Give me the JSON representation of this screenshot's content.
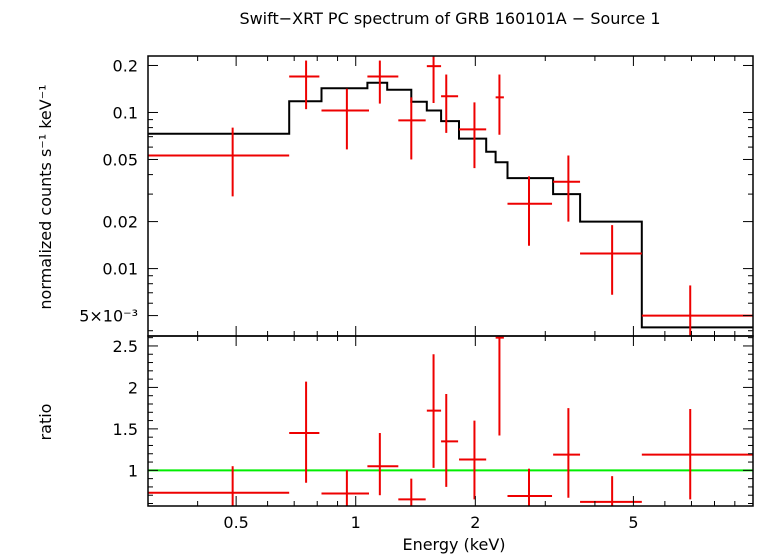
{
  "chart_data": {
    "type": "scatter",
    "title": "Swift−XRT PC spectrum of GRB 160101A − Source 1",
    "xlabel": "Energy (keV)",
    "xscale": "log",
    "xlim": [
      0.3,
      10.0
    ],
    "x_ticks": [
      {
        "value": 0.5,
        "label": "0.5"
      },
      {
        "value": 1,
        "label": "1"
      },
      {
        "value": 2,
        "label": "2"
      },
      {
        "value": 5,
        "label": "5"
      }
    ],
    "colors": {
      "data": "#ee0000",
      "model": "#000000",
      "unity": "#00ee00",
      "axes": "#000000"
    },
    "panels": [
      {
        "name": "spectrum",
        "ylabel": "normalized counts s⁻¹ keV⁻¹",
        "yscale": "log",
        "ylim": [
          0.0037,
          0.23
        ],
        "y_ticks": [
          {
            "value": 0.2,
            "label": "0.2"
          },
          {
            "value": 0.1,
            "label": "0.1"
          },
          {
            "value": 0.05,
            "label": "0.05"
          },
          {
            "value": 0.02,
            "label": "0.02"
          },
          {
            "value": 0.01,
            "label": "0.01"
          },
          {
            "value": 0.005,
            "label": "5×10⁻³"
          }
        ],
        "data": [
          {
            "x": 0.49,
            "xlo": 0.3,
            "xhi": 0.68,
            "y": 0.053,
            "ylo": 0.029,
            "yhi": 0.08
          },
          {
            "x": 0.75,
            "xlo": 0.68,
            "xhi": 0.81,
            "y": 0.17,
            "ylo": 0.105,
            "yhi": 0.215
          },
          {
            "x": 0.95,
            "xlo": 0.82,
            "xhi": 1.08,
            "y": 0.103,
            "ylo": 0.058,
            "yhi": 0.142
          },
          {
            "x": 1.15,
            "xlo": 1.07,
            "xhi": 1.28,
            "y": 0.17,
            "ylo": 0.114,
            "yhi": 0.215
          },
          {
            "x": 1.38,
            "xlo": 1.28,
            "xhi": 1.5,
            "y": 0.089,
            "ylo": 0.05,
            "yhi": 0.125
          },
          {
            "x": 1.57,
            "xlo": 1.51,
            "xhi": 1.64,
            "y": 0.198,
            "ylo": 0.115,
            "yhi": 0.228
          },
          {
            "x": 1.69,
            "xlo": 1.64,
            "xhi": 1.81,
            "y": 0.127,
            "ylo": 0.074,
            "yhi": 0.175
          },
          {
            "x": 1.99,
            "xlo": 1.82,
            "xhi": 2.13,
            "y": 0.078,
            "ylo": 0.044,
            "yhi": 0.116
          },
          {
            "x": 2.3,
            "xlo": 2.25,
            "xhi": 2.36,
            "y": 0.125,
            "ylo": 0.072,
            "yhi": 0.175
          },
          {
            "x": 2.73,
            "xlo": 2.41,
            "xhi": 3.12,
            "y": 0.026,
            "ylo": 0.014,
            "yhi": 0.039
          },
          {
            "x": 3.43,
            "xlo": 3.14,
            "xhi": 3.67,
            "y": 0.036,
            "ylo": 0.02,
            "yhi": 0.053
          },
          {
            "x": 4.42,
            "xlo": 3.67,
            "xhi": 5.25,
            "y": 0.0125,
            "ylo": 0.0068,
            "yhi": 0.019
          },
          {
            "x": 6.95,
            "xlo": 5.25,
            "xhi": 10.0,
            "y": 0.005,
            "ylo": 0.0037,
            "yhi": 0.0078
          }
        ],
        "model_steps": [
          {
            "xlo": 0.3,
            "xhi": 0.68,
            "y": 0.073
          },
          {
            "xlo": 0.68,
            "xhi": 0.82,
            "y": 0.118
          },
          {
            "xlo": 0.82,
            "xhi": 1.07,
            "y": 0.143
          },
          {
            "xlo": 1.07,
            "xhi": 1.2,
            "y": 0.155
          },
          {
            "xlo": 1.2,
            "xhi": 1.38,
            "y": 0.14
          },
          {
            "xlo": 1.38,
            "xhi": 1.51,
            "y": 0.117
          },
          {
            "xlo": 1.51,
            "xhi": 1.64,
            "y": 0.103
          },
          {
            "xlo": 1.64,
            "xhi": 1.82,
            "y": 0.088
          },
          {
            "xlo": 1.82,
            "xhi": 2.13,
            "y": 0.068
          },
          {
            "xlo": 2.13,
            "xhi": 2.25,
            "y": 0.056
          },
          {
            "xlo": 2.25,
            "xhi": 2.41,
            "y": 0.048
          },
          {
            "xlo": 2.41,
            "xhi": 3.14,
            "y": 0.038
          },
          {
            "xlo": 3.14,
            "xhi": 3.67,
            "y": 0.03
          },
          {
            "xlo": 3.67,
            "xhi": 5.25,
            "y": 0.02
          },
          {
            "xlo": 5.25,
            "xhi": 10.0,
            "y": 0.0042
          }
        ]
      },
      {
        "name": "ratio",
        "ylabel": "ratio",
        "yscale": "linear",
        "ylim": [
          0.57,
          2.62
        ],
        "y_ticks": [
          {
            "value": 1,
            "label": "1"
          },
          {
            "value": 1.5,
            "label": "1.5"
          },
          {
            "value": 2,
            "label": "2"
          },
          {
            "value": 2.5,
            "label": "2.5"
          }
        ],
        "unity_line": 1.0,
        "data": [
          {
            "x": 0.49,
            "xlo": 0.3,
            "xhi": 0.68,
            "y": 0.73,
            "ylo": 0.57,
            "yhi": 1.05
          },
          {
            "x": 0.75,
            "xlo": 0.68,
            "xhi": 0.81,
            "y": 1.45,
            "ylo": 0.85,
            "yhi": 2.07
          },
          {
            "x": 0.95,
            "xlo": 0.82,
            "xhi": 1.08,
            "y": 0.72,
            "ylo": 0.57,
            "yhi": 1.0
          },
          {
            "x": 1.15,
            "xlo": 1.07,
            "xhi": 1.28,
            "y": 1.05,
            "ylo": 0.7,
            "yhi": 1.45
          },
          {
            "x": 1.38,
            "xlo": 1.28,
            "xhi": 1.5,
            "y": 0.65,
            "ylo": 0.57,
            "yhi": 0.9
          },
          {
            "x": 1.57,
            "xlo": 1.51,
            "xhi": 1.64,
            "y": 1.72,
            "ylo": 1.03,
            "yhi": 2.4
          },
          {
            "x": 1.69,
            "xlo": 1.64,
            "xhi": 1.81,
            "y": 1.35,
            "ylo": 0.8,
            "yhi": 1.92
          },
          {
            "x": 1.99,
            "xlo": 1.82,
            "xhi": 2.13,
            "y": 1.13,
            "ylo": 0.65,
            "yhi": 1.6
          },
          {
            "x": 2.3,
            "xlo": 2.25,
            "xhi": 2.36,
            "y": 2.6,
            "ylo": 1.42,
            "yhi": 2.62
          },
          {
            "x": 2.73,
            "xlo": 2.41,
            "xhi": 3.12,
            "y": 0.69,
            "ylo": 0.57,
            "yhi": 1.02
          },
          {
            "x": 3.43,
            "xlo": 3.14,
            "xhi": 3.67,
            "y": 1.19,
            "ylo": 0.67,
            "yhi": 1.75
          },
          {
            "x": 4.42,
            "xlo": 3.67,
            "xhi": 5.25,
            "y": 0.62,
            "ylo": 0.57,
            "yhi": 0.93
          },
          {
            "x": 6.95,
            "xlo": 5.25,
            "xhi": 10.0,
            "y": 1.19,
            "ylo": 0.65,
            "yhi": 1.74
          }
        ]
      }
    ]
  }
}
